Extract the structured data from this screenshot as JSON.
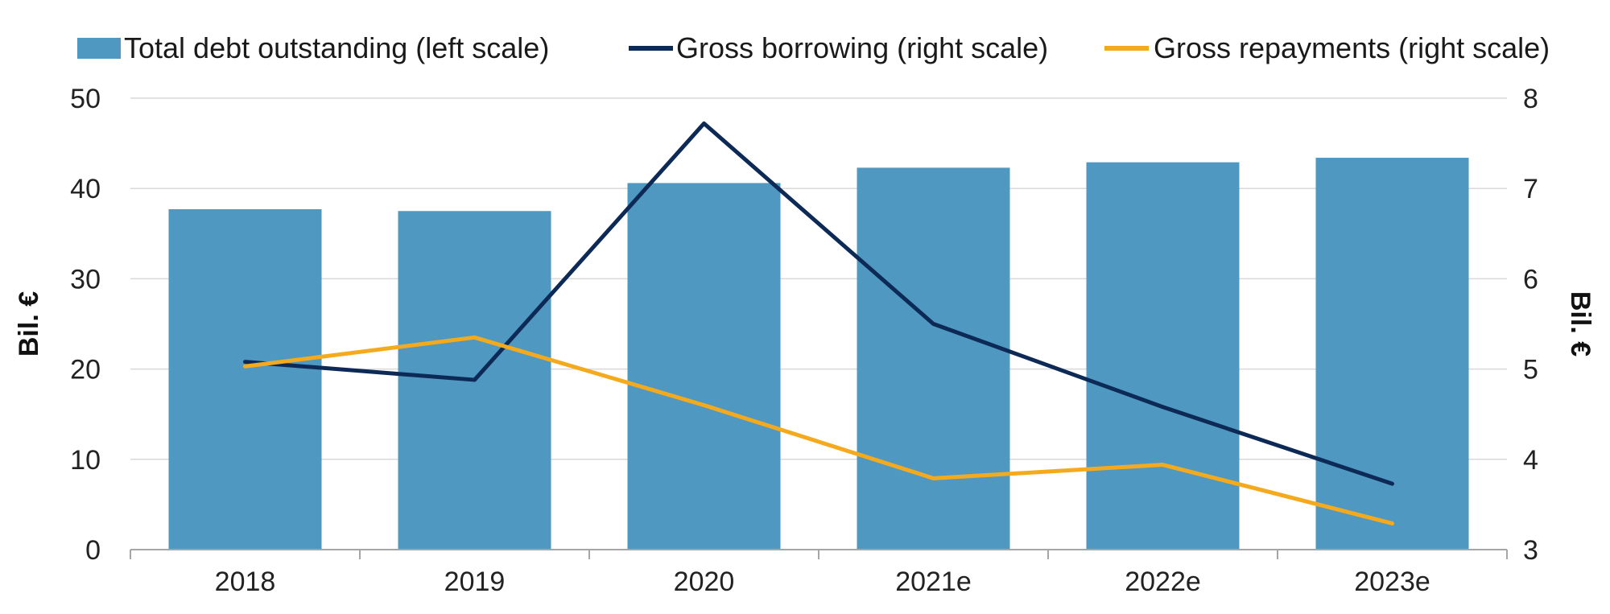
{
  "chart_data": {
    "type": "bar",
    "categories": [
      "2018",
      "2019",
      "2020",
      "2021e",
      "2022e",
      "2023e"
    ],
    "series": [
      {
        "name": "Total debt outstanding (left scale)",
        "kind": "bar",
        "axis": "left",
        "color": "#4f98c1",
        "values": [
          37.7,
          37.5,
          40.6,
          42.3,
          42.9,
          43.4
        ]
      },
      {
        "name": "Gross borrowing (right scale)",
        "kind": "line",
        "axis": "right",
        "color": "#0d2a56",
        "values": [
          5.08,
          4.88,
          7.72,
          5.5,
          4.58,
          3.73
        ]
      },
      {
        "name": "Gross repayments (right scale)",
        "kind": "line",
        "axis": "right",
        "color": "#f5aa1e",
        "values": [
          5.03,
          5.35,
          4.6,
          3.79,
          3.94,
          3.29
        ]
      }
    ],
    "ylabel_left": "Bil. €",
    "ylabel_right": "Bil. €",
    "ylim_left": [
      0,
      50
    ],
    "yticks_left": [
      "0",
      "10",
      "20",
      "30",
      "40",
      "50"
    ],
    "ylim_right": [
      3,
      8
    ],
    "yticks_right": [
      "3",
      "4",
      "5",
      "6",
      "7",
      "8"
    ],
    "grid": true,
    "legend": "top"
  }
}
